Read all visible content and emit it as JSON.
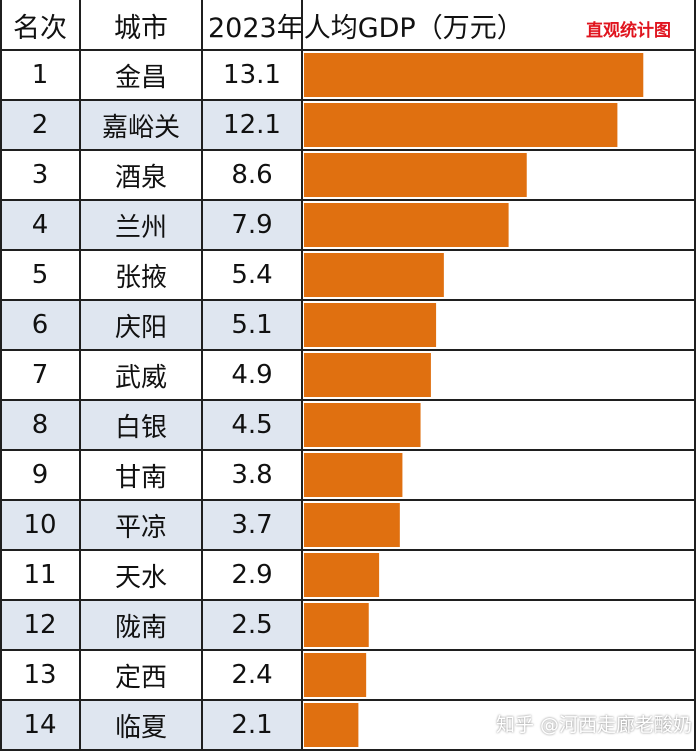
{
  "header": {
    "rank_label": "名次",
    "city_label": "城市",
    "value_label": "2023年人均GDP（万元）",
    "brand": "直观统计图"
  },
  "watermark": "知乎 @河西走廊老酸奶",
  "colors": {
    "bar": "#e07010",
    "row_alt": "#dfe6f0",
    "row_plain": "#ffffff",
    "grid": "#1f1f1f",
    "brand": "#e0141e"
  },
  "chart_data": {
    "type": "bar",
    "orientation": "horizontal",
    "title": "2023年人均GDP（万元）",
    "xlim": [
      0,
      14
    ],
    "rows": [
      {
        "rank": "1",
        "city": "金昌",
        "value": 13.1,
        "label": "13.1"
      },
      {
        "rank": "2",
        "city": "嘉峪关",
        "value": 12.1,
        "label": "12.1"
      },
      {
        "rank": "3",
        "city": "酒泉",
        "value": 8.6,
        "label": "8.6"
      },
      {
        "rank": "4",
        "city": "兰州",
        "value": 7.9,
        "label": "7.9"
      },
      {
        "rank": "5",
        "city": "张掖",
        "value": 5.4,
        "label": "5.4"
      },
      {
        "rank": "6",
        "city": "庆阳",
        "value": 5.1,
        "label": "5.1"
      },
      {
        "rank": "7",
        "city": "武威",
        "value": 4.9,
        "label": "4.9"
      },
      {
        "rank": "8",
        "city": "白银",
        "value": 4.5,
        "label": "4.5"
      },
      {
        "rank": "9",
        "city": "甘南",
        "value": 3.8,
        "label": "3.8"
      },
      {
        "rank": "10",
        "city": "平凉",
        "value": 3.7,
        "label": "3.7"
      },
      {
        "rank": "11",
        "city": "天水",
        "value": 2.9,
        "label": "2.9"
      },
      {
        "rank": "12",
        "city": "陇南",
        "value": 2.5,
        "label": "2.5"
      },
      {
        "rank": "13",
        "city": "定西",
        "value": 2.4,
        "label": "2.4"
      },
      {
        "rank": "14",
        "city": "临夏",
        "value": 2.1,
        "label": "2.1"
      }
    ]
  }
}
